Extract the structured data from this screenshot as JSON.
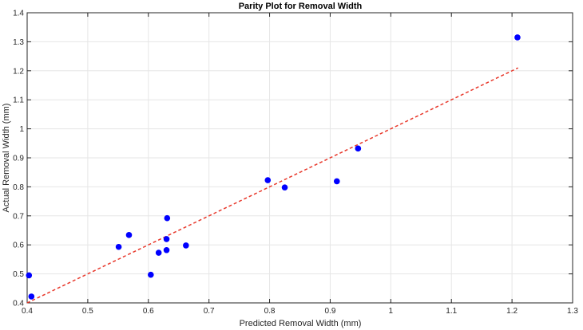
{
  "chart_data": {
    "type": "scatter",
    "title": "Parity Plot for Removal Width",
    "xlabel": "Predicted Removal Width (mm)",
    "ylabel": "Actual Removal Width (mm)",
    "xlim": [
      0.4,
      1.3
    ],
    "ylim": [
      0.4,
      1.4
    ],
    "xticks": [
      "0.4",
      "0.5",
      "0.6",
      "0.7",
      "0.8",
      "0.9",
      "1",
      "1.1",
      "1.2",
      "1.3"
    ],
    "yticks": [
      "0.4",
      "0.5",
      "0.6",
      "0.7",
      "0.8",
      "0.9",
      "1",
      "1.1",
      "1.2",
      "1.3",
      "1.4"
    ],
    "grid": true,
    "points": [
      {
        "x": 0.403,
        "y": 0.495
      },
      {
        "x": 0.407,
        "y": 0.422
      },
      {
        "x": 0.551,
        "y": 0.593
      },
      {
        "x": 0.568,
        "y": 0.634
      },
      {
        "x": 0.604,
        "y": 0.497
      },
      {
        "x": 0.617,
        "y": 0.573
      },
      {
        "x": 0.63,
        "y": 0.582
      },
      {
        "x": 0.63,
        "y": 0.62
      },
      {
        "x": 0.631,
        "y": 0.692
      },
      {
        "x": 0.662,
        "y": 0.598
      },
      {
        "x": 0.797,
        "y": 0.823
      },
      {
        "x": 0.825,
        "y": 0.798
      },
      {
        "x": 0.911,
        "y": 0.819
      },
      {
        "x": 0.946,
        "y": 0.932
      },
      {
        "x": 1.209,
        "y": 1.315
      }
    ],
    "parity_line": {
      "x": [
        0.4,
        1.21
      ],
      "y": [
        0.4,
        1.21
      ]
    },
    "colors": {
      "points": "#0000ff",
      "parity_line": "#e8382b",
      "grid": "#e6e6e6",
      "axes": "#262626"
    }
  }
}
